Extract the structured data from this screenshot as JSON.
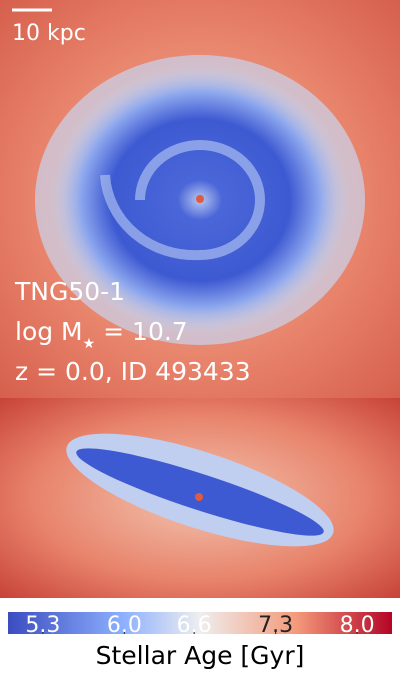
{
  "scale_bar": "10 kpc",
  "info": {
    "simulation": "TNG50-1",
    "mass": {
      "prefix": "log M",
      "subscript": "★",
      "suffix": " = 10.7"
    },
    "snapshot": "z = 0.0, ID 493433"
  },
  "colorbar": {
    "label": "Stellar Age [Gyr]",
    "lim": [
      5.0,
      8.3
    ],
    "ticks": [
      5.3,
      {
        "value": 6,
        "label": "6.0"
      },
      6.6,
      7.3,
      {
        "value": 8,
        "label": "8.0"
      }
    ]
  }
}
